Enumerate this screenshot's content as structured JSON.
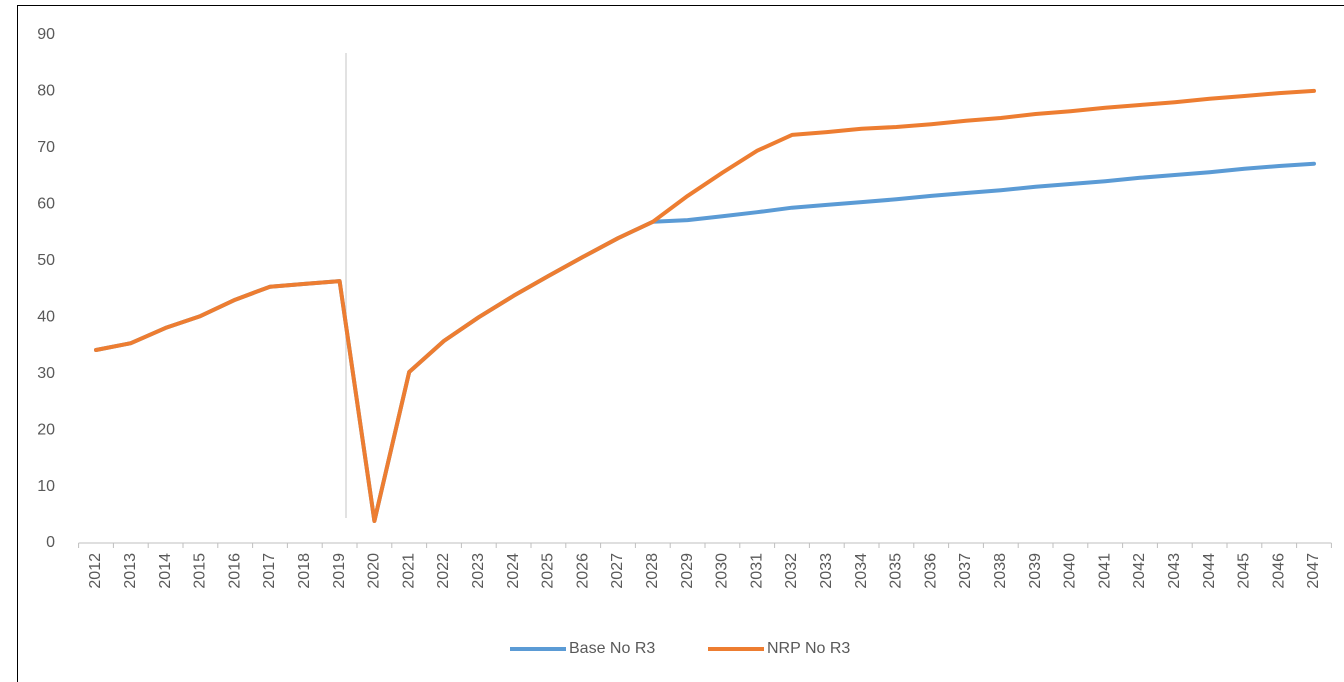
{
  "chart_data": {
    "type": "line",
    "categories": [
      "2012",
      "2013",
      "2014",
      "2015",
      "2016",
      "2017",
      "2018",
      "2019",
      "2020",
      "2021",
      "2022",
      "2023",
      "2024",
      "2025",
      "2026",
      "2027",
      "2028",
      "2029",
      "2030",
      "2031",
      "2032",
      "2033",
      "2034",
      "2035",
      "2036",
      "2037",
      "2038",
      "2039",
      "2040",
      "2041",
      "2042",
      "2043",
      "2044",
      "2045",
      "2046",
      "2047"
    ],
    "series": [
      {
        "name": "Base No R3",
        "color": "#5b9bd5",
        "values": [
          34.2,
          35.4,
          38.1,
          40.2,
          43.1,
          45.4,
          45.9,
          46.4,
          3.9,
          30.3,
          35.8,
          40.0,
          43.8,
          47.3,
          50.7,
          54.0,
          56.9,
          57.2,
          57.9,
          58.6,
          59.4,
          59.9,
          60.4,
          60.9,
          61.5,
          62.0,
          62.5,
          63.1,
          63.6,
          64.1,
          64.7,
          65.2,
          65.7,
          66.3,
          66.8,
          67.2
        ]
      },
      {
        "name": "NRP No R3",
        "color": "#ed7d31",
        "values": [
          34.2,
          35.4,
          38.1,
          40.2,
          43.1,
          45.4,
          45.9,
          46.4,
          3.9,
          30.3,
          35.8,
          40.0,
          43.8,
          47.3,
          50.7,
          54.0,
          56.9,
          61.5,
          65.6,
          69.5,
          72.3,
          72.8,
          73.4,
          73.7,
          74.2,
          74.8,
          75.3,
          76.0,
          76.5,
          77.1,
          77.6,
          78.1,
          78.7,
          79.2,
          79.7,
          80.1
        ]
      }
    ],
    "ylim": [
      0,
      90
    ],
    "yticks": [
      0,
      10,
      20,
      30,
      40,
      50,
      60,
      70,
      80,
      90
    ],
    "legend": "bottom"
  }
}
